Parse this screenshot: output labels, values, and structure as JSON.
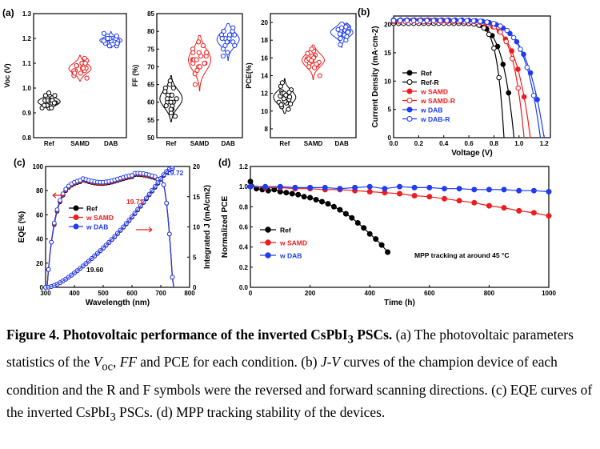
{
  "colors": {
    "ref": "#000000",
    "samd": "#ee1c1c",
    "dab": "#1f3cf2"
  },
  "panels": {
    "a": "(a)",
    "b": "(b)",
    "c": "(c)",
    "d": "(d)"
  },
  "caption": {
    "title": "Figure 4. Photovoltaic performance of the inverted CsPbI",
    "title_sub": "3",
    "title_end": " PSCs.",
    "p1": " (a) The photovoltaic parameters statistics of the ",
    "voc_v": "V",
    "voc_sub": "oc",
    "p2": ", ",
    "ff": "FF",
    "p3": " and PCE for each condition. (b) ",
    "jv": "J-V",
    "p4": " curves of the champion device of each condition and the R and F symbols were the reversed and forward scanning directions. (c) EQE curves of the inverted CsPbI",
    "p4_sub": "3",
    "p5": " PSCs. (d) MPP tracking stability of the devices."
  },
  "chart_data": [
    {
      "id": "a1",
      "type": "scatter",
      "ylabel": "Voc (V)",
      "ylim": [
        0.8,
        1.3
      ],
      "yticks": [
        "0.8",
        "0.9",
        "1.0",
        "1.1",
        "1.2",
        "1.3"
      ],
      "categories": [
        "Ref",
        "SAMD",
        "DAB"
      ],
      "series": [
        {
          "values": [
            0.93,
            0.95,
            0.94,
            0.96,
            0.92,
            0.97,
            0.94,
            0.95,
            0.93,
            0.98,
            0.94,
            0.96,
            0.93,
            0.95,
            0.94,
            0.92,
            0.97,
            0.95,
            0.94,
            0.93
          ]
        },
        {
          "values": [
            1.08,
            1.06,
            1.09,
            1.07,
            1.11,
            1.05,
            1.08,
            1.1,
            1.07,
            1.09,
            1.06,
            1.08,
            1.12,
            1.07,
            1.09,
            1.04,
            1.08,
            1.1,
            1.06,
            1.08
          ]
        },
        {
          "values": [
            1.19,
            1.18,
            1.2,
            1.19,
            1.21,
            1.17,
            1.19,
            1.2,
            1.18,
            1.22,
            1.19,
            1.18,
            1.2,
            1.19,
            1.21,
            1.18,
            1.2,
            1.19,
            1.17,
            1.2
          ]
        }
      ]
    },
    {
      "id": "a2",
      "type": "scatter",
      "ylabel": "FF (%)",
      "ylim": [
        50,
        85
      ],
      "yticks": [
        "50",
        "55",
        "60",
        "65",
        "70",
        "75",
        "80",
        "85"
      ],
      "categories": [
        "Ref",
        "SAMD",
        "DAB"
      ],
      "series": [
        {
          "values": [
            62,
            58,
            64,
            60,
            66,
            57,
            63,
            61,
            59,
            65,
            62,
            56,
            60,
            63,
            58,
            61,
            64,
            59,
            62,
            60
          ]
        },
        {
          "values": [
            72,
            70,
            74,
            71,
            76,
            69,
            73,
            72,
            75,
            68,
            71,
            74,
            72,
            70,
            73,
            65,
            77,
            72,
            71,
            74
          ]
        },
        {
          "values": [
            78,
            76,
            80,
            77,
            79,
            75,
            81,
            78,
            77,
            79,
            74,
            80,
            78,
            76,
            79,
            73,
            80,
            77,
            78,
            79
          ]
        }
      ]
    },
    {
      "id": "a3",
      "type": "scatter",
      "ylabel": "PCE(%)",
      "ylim": [
        7,
        21
      ],
      "yticks": [
        "8",
        "10",
        "12",
        "14",
        "16",
        "18",
        "20"
      ],
      "categories": [
        "Ref",
        "SAMD",
        "DAB"
      ],
      "series": [
        {
          "values": [
            11.5,
            10.8,
            12.2,
            11.0,
            12.8,
            10.2,
            11.7,
            12.0,
            11.3,
            13.2,
            10.9,
            11.6,
            12.4,
            11.1,
            10.5,
            12.0,
            11.4,
            11.8,
            10.7,
            12.1
          ]
        },
        {
          "values": [
            15.8,
            15.2,
            16.3,
            15.5,
            16.8,
            14.9,
            15.9,
            16.1,
            15.4,
            16.5,
            15.0,
            15.7,
            16.2,
            14.0,
            17.0,
            15.6,
            15.9,
            15.3,
            16.0,
            15.7
          ]
        },
        {
          "values": [
            19.0,
            18.5,
            19.5,
            18.8,
            19.7,
            18.2,
            19.3,
            19.1,
            18.6,
            19.6,
            18.0,
            19.2,
            18.9,
            17.5,
            19.4,
            18.7,
            19.0,
            18.4,
            19.5,
            18.9
          ]
        }
      ]
    },
    {
      "id": "b",
      "type": "line",
      "xlabel": "Voltage (V)",
      "ylabel": "Current Density (mA·cm-2)",
      "xlim": [
        0,
        1.25
      ],
      "ylim": [
        0,
        21.5
      ],
      "xticks": [
        "0.0",
        "0.2",
        "0.4",
        "0.6",
        "0.8",
        "1.0",
        "1.2"
      ],
      "yticks": [
        "0",
        "5",
        "10",
        "15",
        "20"
      ],
      "series": [
        {
          "name": "Ref",
          "jsc": 20.6,
          "voc": 0.96,
          "n": 2.6,
          "filled": true,
          "color": "ref"
        },
        {
          "name": "Ref-R",
          "jsc": 20.2,
          "voc": 0.88,
          "n": 4.0,
          "filled": false,
          "color": "ref"
        },
        {
          "name": "w SAMD",
          "jsc": 20.7,
          "voc": 1.09,
          "n": 2.3,
          "filled": true,
          "color": "samd"
        },
        {
          "name": "w SAMD-R",
          "jsc": 20.5,
          "voc": 1.04,
          "n": 3.0,
          "filled": false,
          "color": "samd"
        },
        {
          "name": "w DAB",
          "jsc": 20.8,
          "voc": 1.2,
          "n": 2.1,
          "filled": true,
          "color": "dab"
        },
        {
          "name": "w DAB-R",
          "jsc": 20.7,
          "voc": 1.17,
          "n": 2.4,
          "filled": false,
          "color": "dab"
        }
      ]
    },
    {
      "id": "c",
      "type": "line",
      "xlabel": "Wavelength (nm)",
      "ylabel": "EQE (%)",
      "y2label": "Integrated J (mA/cm2)",
      "xlim": [
        300,
        800
      ],
      "ylim": [
        0,
        100
      ],
      "y2lim": [
        0,
        20
      ],
      "xticks": [
        "300",
        "400",
        "500",
        "600",
        "700",
        "800"
      ],
      "yticks": [
        "0",
        "20",
        "40",
        "60",
        "80",
        "100"
      ],
      "y2ticks": [
        "0",
        "5",
        "10",
        "15",
        "20"
      ],
      "annotations": [
        "19.72",
        "19.71",
        "19.60"
      ],
      "series": [
        {
          "name": "Ref",
          "color": "ref",
          "eqe_offset": -1.2,
          "jint_end": 19.6
        },
        {
          "name": "w SAMD",
          "color": "samd",
          "eqe_offset": -0.6,
          "jint_end": 19.71
        },
        {
          "name": "w DAB",
          "color": "dab",
          "eqe_offset": 0,
          "jint_end": 19.72
        }
      ]
    },
    {
      "id": "d",
      "type": "line",
      "xlabel": "Time (h)",
      "ylabel": "Normalized PCE",
      "xlim": [
        0,
        1000
      ],
      "ylim": [
        0,
        1.2
      ],
      "xticks": [
        "0",
        "200",
        "400",
        "600",
        "800",
        "1000"
      ],
      "yticks": [
        "0.0",
        "0.2",
        "0.4",
        "0.6",
        "0.8",
        "1.0",
        "1.2"
      ],
      "annotation": "MPP tracking at around 45 °C",
      "series": [
        {
          "name": "Ref",
          "color": "ref",
          "x": [
            0,
            20,
            40,
            60,
            80,
            100,
            120,
            140,
            160,
            180,
            200,
            220,
            240,
            260,
            280,
            300,
            320,
            340,
            360,
            380,
            400,
            420,
            440,
            460
          ],
          "y": [
            1.05,
            0.98,
            0.97,
            0.96,
            0.97,
            0.95,
            0.94,
            0.93,
            0.92,
            0.9,
            0.89,
            0.87,
            0.85,
            0.83,
            0.8,
            0.77,
            0.73,
            0.69,
            0.64,
            0.59,
            0.53,
            0.48,
            0.42,
            0.35
          ]
        },
        {
          "name": "w SAMD",
          "color": "samd",
          "x": [
            0,
            50,
            100,
            150,
            200,
            250,
            300,
            350,
            400,
            450,
            500,
            550,
            600,
            650,
            700,
            750,
            800,
            850,
            900,
            950,
            1000
          ],
          "y": [
            1.0,
            0.99,
            0.99,
            0.98,
            0.98,
            0.97,
            0.97,
            0.96,
            0.95,
            0.94,
            0.93,
            0.91,
            0.9,
            0.88,
            0.86,
            0.84,
            0.81,
            0.79,
            0.76,
            0.74,
            0.71
          ]
        },
        {
          "name": "w DAB",
          "color": "dab",
          "x": [
            0,
            50,
            100,
            150,
            200,
            250,
            300,
            350,
            400,
            450,
            500,
            550,
            600,
            650,
            700,
            750,
            800,
            850,
            900,
            950,
            1000
          ],
          "y": [
            1.0,
            1.0,
            1.0,
            0.99,
            0.99,
            0.99,
            0.98,
            0.99,
            1.0,
            0.98,
            1.0,
            0.99,
            0.99,
            0.98,
            0.98,
            0.97,
            0.97,
            0.97,
            0.96,
            0.96,
            0.95
          ]
        }
      ]
    }
  ]
}
